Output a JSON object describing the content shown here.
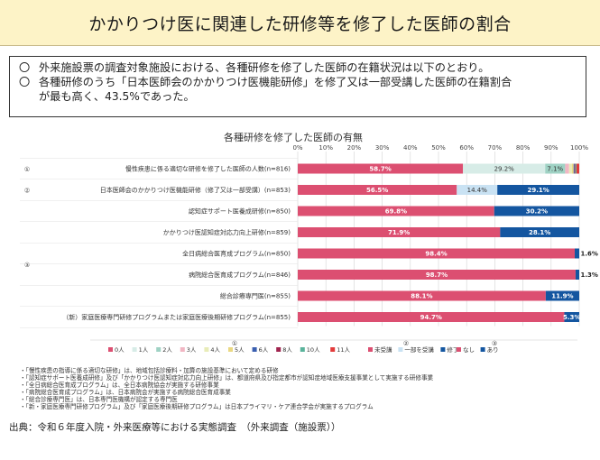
{
  "title": "かかりつけ医に関連した研修等を修了した医師の割合",
  "summary": {
    "bullet": "〇",
    "line1": "外来施設票の調査対象施設における、各種研修を修了した医師の在籍状況は以下のとおり。",
    "line2": "各種研修のうち「日本医師会のかかりつけ医機能研修」を修了又は一部受講した医師の在籍割合",
    "line3": "が最も高く、43.5%であった。"
  },
  "chart_data": {
    "type": "bar",
    "orientation": "horizontal",
    "stacked": true,
    "title": "各種研修を修了した医師の有無",
    "xlim": [
      0,
      100
    ],
    "x_ticks": [
      "0%",
      "10%",
      "20%",
      "30%",
      "40%",
      "50%",
      "60%",
      "70%",
      "80%",
      "90%",
      "100%"
    ],
    "grid": true,
    "group_markers": [
      "①",
      "②",
      "③"
    ],
    "categories": [
      {
        "label": "慢性疾患に係る適切な研修を修了した医師の人数(n=816)",
        "group": "①",
        "segments": [
          {
            "key": "0人",
            "value": 58.7,
            "label": "58.7%"
          },
          {
            "key": "1人",
            "value": 29.2,
            "label": "29.2%"
          },
          {
            "key": "2人",
            "value": 7.1,
            "label": "7.1%"
          },
          {
            "key": "3人",
            "value": 1.4,
            "label": ""
          },
          {
            "key": "4人",
            "value": 1.0,
            "label": ""
          },
          {
            "key": "5人",
            "value": 0.6,
            "label": ""
          },
          {
            "key": "6人",
            "value": 0.3,
            "label": ""
          },
          {
            "key": "8人",
            "value": 0.3,
            "label": ""
          },
          {
            "key": "10人",
            "value": 0.4,
            "label": ""
          },
          {
            "key": "11人",
            "value": 1.0,
            "label": ""
          }
        ]
      },
      {
        "label": "日本医師会のかかりつけ医機能研修（修了又は一部受講）(n=853)",
        "group": "②",
        "segments": [
          {
            "key": "未受講",
            "value": 56.5,
            "label": "56.5%"
          },
          {
            "key": "一部を受講",
            "value": 14.4,
            "label": "14.4%"
          },
          {
            "key": "修了",
            "value": 29.1,
            "label": "29.1%"
          }
        ]
      },
      {
        "label": "認知症サポート医養成研修(n=850)",
        "group": "③",
        "segments": [
          {
            "key": "なし",
            "value": 69.8,
            "label": "69.8%"
          },
          {
            "key": "あり",
            "value": 30.2,
            "label": "30.2%"
          }
        ]
      },
      {
        "label": "かかりつけ医認知症対応力向上研修(n=859)",
        "group": "③",
        "segments": [
          {
            "key": "なし",
            "value": 71.9,
            "label": "71.9%"
          },
          {
            "key": "あり",
            "value": 28.1,
            "label": "28.1%"
          }
        ]
      },
      {
        "label": "全日病総合医育成プログラム(n=850)",
        "group": "③",
        "segments": [
          {
            "key": "なし",
            "value": 98.4,
            "label": "98.4%"
          },
          {
            "key": "あり",
            "value": 1.6,
            "label": "1.6%"
          }
        ]
      },
      {
        "label": "病院総合医育成プログラム(n=846)",
        "group": "③",
        "segments": [
          {
            "key": "なし",
            "value": 98.7,
            "label": "98.7%"
          },
          {
            "key": "あり",
            "value": 1.3,
            "label": "1.3%"
          }
        ]
      },
      {
        "label": "総合診療専門医(n=855)",
        "group": "③",
        "segments": [
          {
            "key": "なし",
            "value": 88.1,
            "label": "88.1%"
          },
          {
            "key": "あり",
            "value": 11.9,
            "label": "11.9%"
          }
        ]
      },
      {
        "label": "（新）家庭医療専門研修プログラムまたは家庭医療後期研修プログラム(n=855)",
        "group": "③",
        "segments": [
          {
            "key": "なし",
            "value": 94.7,
            "label": "94.7%"
          },
          {
            "key": "あり",
            "value": 5.3,
            "label": "5.3%"
          }
        ]
      }
    ],
    "legend": [
      {
        "group": "①",
        "items": [
          {
            "key": "0人",
            "color": "#dc4f71"
          },
          {
            "key": "1人",
            "color": "#d7ece7"
          },
          {
            "key": "2人",
            "color": "#9fd2c4"
          },
          {
            "key": "3人",
            "color": "#f1b6c3"
          },
          {
            "key": "4人",
            "color": "#e8ecb8"
          },
          {
            "key": "5人",
            "color": "#ead882"
          },
          {
            "key": "6人",
            "color": "#3a5fb0"
          },
          {
            "key": "8人",
            "color": "#a0244e"
          },
          {
            "key": "10人",
            "color": "#5ab39b"
          },
          {
            "key": "11人",
            "color": "#e23b3b"
          }
        ]
      },
      {
        "group": "②",
        "items": [
          {
            "key": "未受講",
            "color": "#dc4f71"
          },
          {
            "key": "一部を受講",
            "color": "#c9e2f3"
          },
          {
            "key": "修了",
            "color": "#1456a0"
          }
        ]
      },
      {
        "group": "③",
        "items": [
          {
            "key": "なし",
            "color": "#dc4f71"
          },
          {
            "key": "あり",
            "color": "#1456a0"
          }
        ]
      }
    ]
  },
  "notes": [
    "・「慢性疾患の指導に係る適切な研修」は、地域包括診療料・加算の施設基準において定める研修",
    "・「認知症サポート医養成研修」及び「かかりつけ医認知症対応力向上研修」は、都道府県及び指定都市が認知症地域医療支援事業として実施する研修事業",
    "・「全日病総合医育成プログラム」は、全日本病院協会が実施する研修事業",
    "・「病院総合医育成プログラム」は、日本病院会が実施する病院総合医育成事業",
    "・「総合診療専門医」は、日本専門医機構が認定する専門医",
    "・「新・家庭医療専門研修プログラム」及び「家庭医療後期研修プログラム」は日本プライマリ・ケア連合学会が実施するプログラム"
  ],
  "source": "出典：令和６年度入院・外来医療等における実態調査　（外来調査（施設票））"
}
